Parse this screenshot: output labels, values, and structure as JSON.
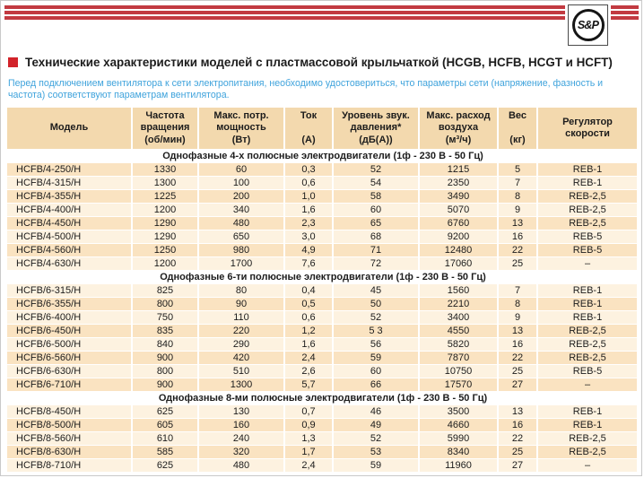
{
  "logo": {
    "text": "S&P"
  },
  "title": {
    "text": "Технические характеристики моделей с пластмассовой крыльчаткой (HCGB, HCFB, HCGT и HCFT)"
  },
  "intro": "Перед подключением вентилятора к сети электропитания, необходимо удостовериться, что параметры сети (напряжение, фазность и частота) соответствуют параметрам вентилятора.",
  "table": {
    "columns": [
      "Модель",
      "Частота\nвращения\n(об/мин)",
      "Макс. потр.\nмощность\n(Вт)",
      "Ток\n\n(А)",
      "Уровень звук.\nдавления*\n(дБ(А))",
      "Макс. расход\nвоздуха\n(м³/ч)",
      "Вес\n\n(кг)",
      "Регулятор\nскорости"
    ],
    "sections": [
      {
        "header": "Однофазные 4-х полюсные электродвигатели (1ф - 230 В - 50 Гц)",
        "rows": [
          [
            "HCFB/4-250/H",
            "1330",
            "60",
            "0,3",
            "52",
            "1215",
            "5",
            "REB-1"
          ],
          [
            "HCFB/4-315/H",
            "1300",
            "100",
            "0,6",
            "54",
            "2350",
            "7",
            "REB-1"
          ],
          [
            "HCFB/4-355/H",
            "1225",
            "200",
            "1,0",
            "58",
            "3490",
            "8",
            "REB-2,5"
          ],
          [
            "HCFB/4-400/H",
            "1200",
            "340",
            "1,6",
            "60",
            "5070",
            "9",
            "REB-2,5"
          ],
          [
            "HCFB/4-450/H",
            "1290",
            "480",
            "2,3",
            "65",
            "6760",
            "13",
            "REB-2,5"
          ],
          [
            "HCFB/4-500/H",
            "1290",
            "650",
            "3,0",
            "68",
            "9200",
            "16",
            "REB-5"
          ],
          [
            "HCFB/4-560/H",
            "1250",
            "980",
            "4,9",
            "71",
            "12480",
            "22",
            "REB-5"
          ],
          [
            "HCFB/4-630/H",
            "1200",
            "1700",
            "7,6",
            "72",
            "17060",
            "25",
            "–"
          ]
        ]
      },
      {
        "header": "Однофазные 6-ти полюсные электродвигатели (1ф - 230 В - 50 Гц)",
        "rows": [
          [
            "HCFB/6-315/H",
            "825",
            "80",
            "0,4",
            "45",
            "1560",
            "7",
            "REB-1"
          ],
          [
            "HCFB/6-355/H",
            "800",
            "90",
            "0,5",
            "50",
            "2210",
            "8",
            "REB-1"
          ],
          [
            "HCFB/6-400/H",
            "750",
            "110",
            "0,6",
            "52",
            "3400",
            "9",
            "REB-1"
          ],
          [
            "HCFB/6-450/H",
            "835",
            "220",
            "1,2",
            "5 3",
            "4550",
            "13",
            "REB-2,5"
          ],
          [
            "HCFB/6-500/H",
            "840",
            "290",
            "1,6",
            "56",
            "5820",
            "16",
            "REB-2,5"
          ],
          [
            "HCFB/6-560/H",
            "900",
            "420",
            "2,4",
            "59",
            "7870",
            "22",
            "REB-2,5"
          ],
          [
            "HCFB/6-630/H",
            "800",
            "510",
            "2,6",
            "60",
            "10750",
            "25",
            "REB-5"
          ],
          [
            "HCFB/6-710/H",
            "900",
            "1300",
            "5,7",
            "66",
            "17570",
            "27",
            "–"
          ]
        ]
      },
      {
        "header": "Однофазные 8-ми полюсные электродвигатели (1ф - 230 В - 50 Гц)",
        "rows": [
          [
            "HCFB/8-450/H",
            "625",
            "130",
            "0,7",
            "46",
            "3500",
            "13",
            "REB-1"
          ],
          [
            "HCFB/8-500/H",
            "605",
            "160",
            "0,9",
            "49",
            "4660",
            "16",
            "REB-1"
          ],
          [
            "HCFB/8-560/H",
            "610",
            "240",
            "1,3",
            "52",
            "5990",
            "22",
            "REB-2,5"
          ],
          [
            "HCFB/8-630/H",
            "585",
            "320",
            "1,7",
            "53",
            "8340",
            "25",
            "REB-2,5"
          ],
          [
            "HCFB/8-710/H",
            "625",
            "480",
            "2,4",
            "59",
            "11960",
            "27",
            "–"
          ]
        ]
      }
    ]
  },
  "colors": {
    "red_stripe": "#c23a41",
    "red_bullet": "#d2232a",
    "blue_text": "#3fa3dc",
    "header_bg": "#f3d9ae",
    "row_dark": "#fae3c1",
    "row_light": "#fdf2e0"
  }
}
